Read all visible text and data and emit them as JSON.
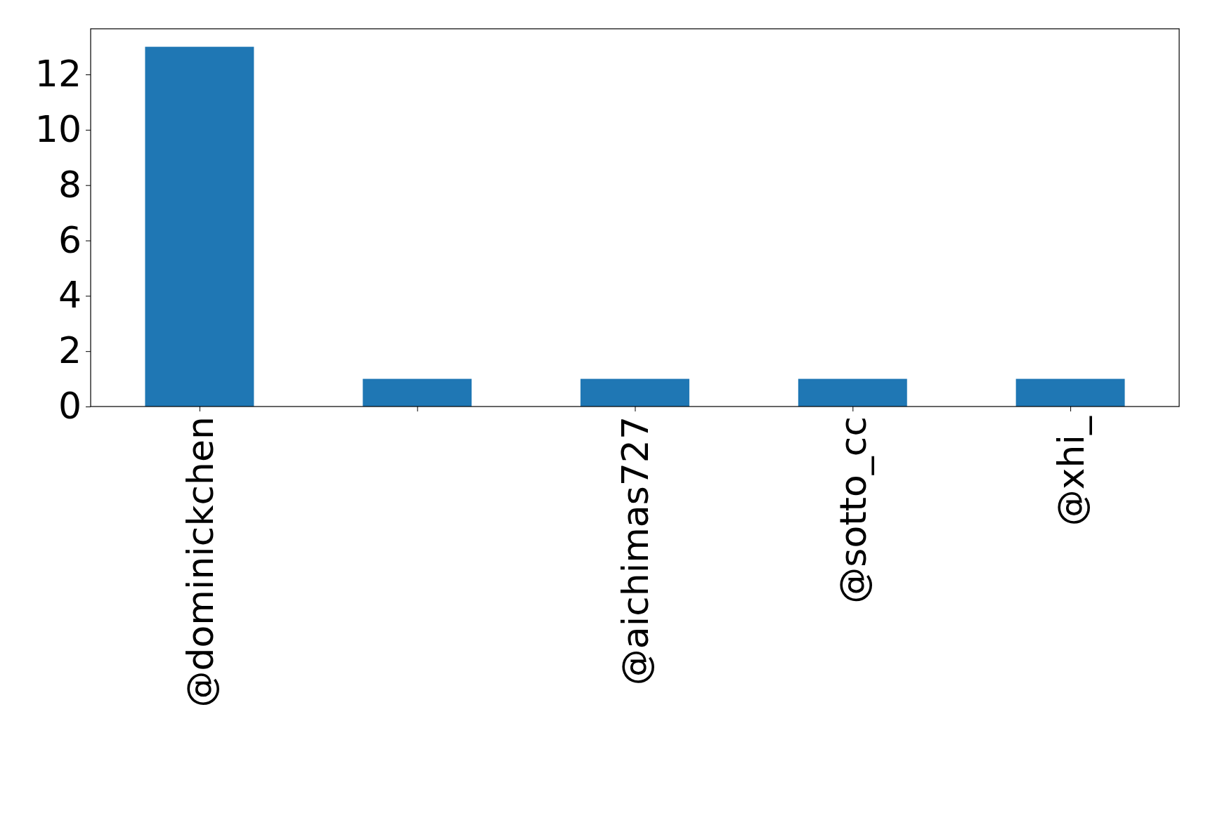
{
  "chart_data": {
    "type": "bar",
    "categories": [
      "@dominickchen",
      null,
      "@aichimas727",
      "@sotto_cc",
      "@xhi_"
    ],
    "values": [
      13,
      1,
      1,
      1,
      1
    ],
    "color": "#1f77b4",
    "ylim": [
      0,
      13.65
    ],
    "yticks": [
      0,
      2,
      4,
      6,
      8,
      10,
      12
    ],
    "grid": false
  }
}
